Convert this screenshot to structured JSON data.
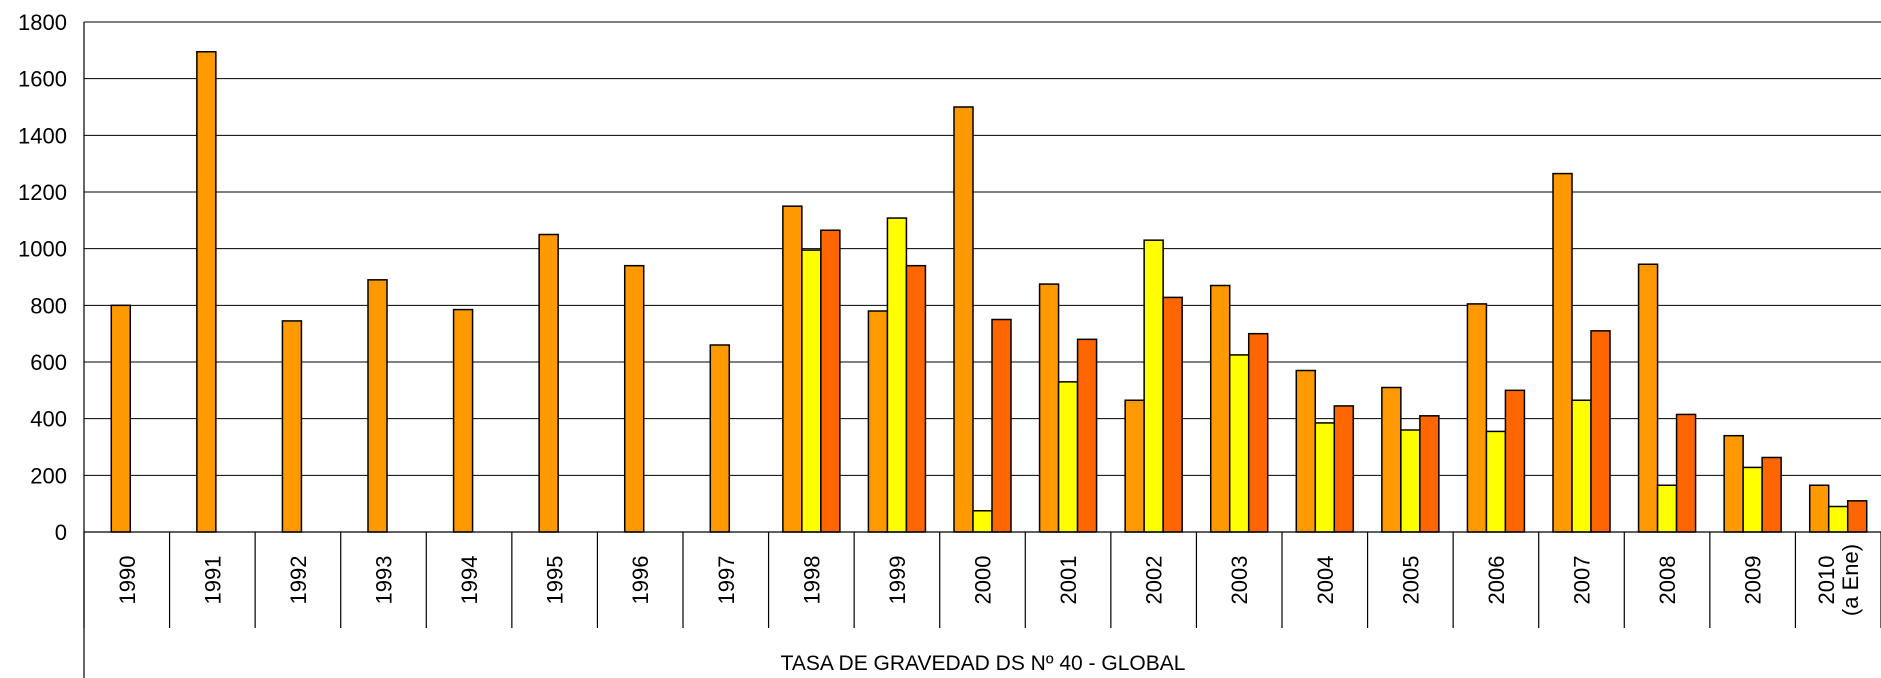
{
  "chart_data": {
    "type": "bar",
    "xlabel": "TASA DE GRAVEDAD DS Nº 40 - GLOBAL",
    "ylabel": "",
    "ylim": [
      0,
      1800
    ],
    "yticks": [
      0,
      200,
      400,
      600,
      800,
      1000,
      1200,
      1400,
      1600,
      1800
    ],
    "grid": true,
    "categories": [
      [
        "1990"
      ],
      [
        "1991"
      ],
      [
        "1992"
      ],
      [
        "1993"
      ],
      [
        "1994"
      ],
      [
        "1995"
      ],
      [
        "1996"
      ],
      [
        "1997"
      ],
      [
        "1998"
      ],
      [
        "1999"
      ],
      [
        "2000"
      ],
      [
        "2001"
      ],
      [
        "2002"
      ],
      [
        "2003"
      ],
      [
        "2004"
      ],
      [
        "2005"
      ],
      [
        "2006"
      ],
      [
        "2007"
      ],
      [
        "2008"
      ],
      [
        "2009"
      ],
      [
        "2010",
        "(a Ene)"
      ]
    ],
    "series": [
      {
        "color": "#FF9900",
        "values": [
          800,
          1695,
          745,
          890,
          785,
          1050,
          940,
          660,
          1150,
          780,
          1500,
          875,
          465,
          870,
          570,
          510,
          805,
          1265,
          945,
          340,
          165
        ]
      },
      {
        "color": "#FFFF00",
        "values": [
          null,
          null,
          null,
          null,
          null,
          null,
          null,
          null,
          995,
          1108,
          75,
          530,
          1030,
          625,
          385,
          360,
          355,
          465,
          165,
          228,
          90
        ]
      },
      {
        "color": "#FF6600",
        "values": [
          null,
          null,
          null,
          null,
          null,
          null,
          null,
          null,
          1065,
          940,
          750,
          680,
          828,
          700,
          445,
          410,
          500,
          710,
          415,
          263,
          110
        ]
      }
    ]
  }
}
